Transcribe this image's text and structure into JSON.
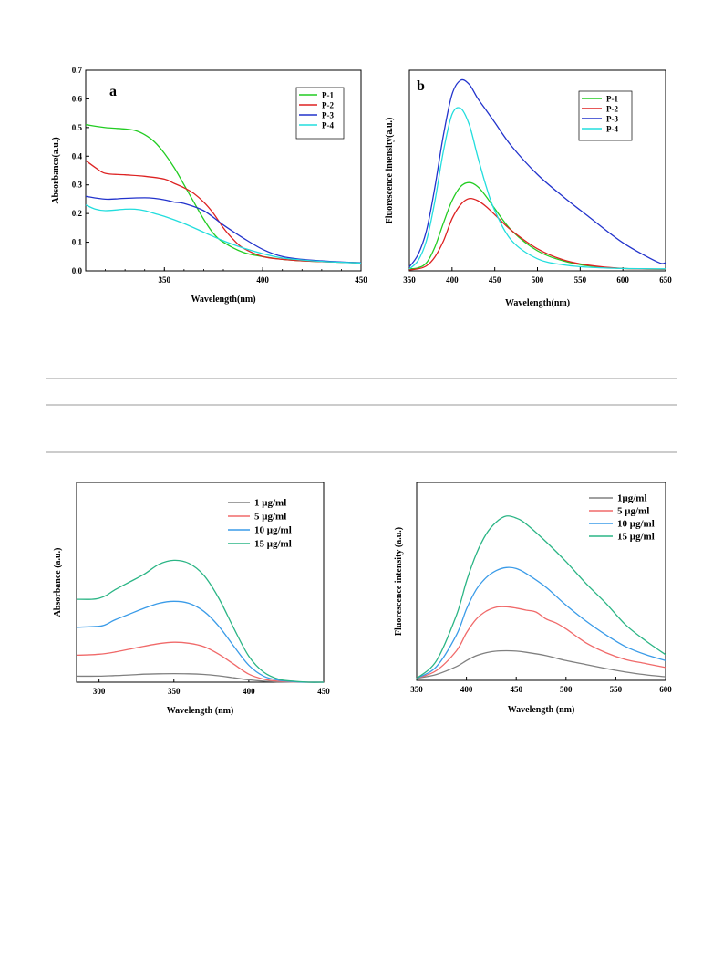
{
  "colors": {
    "green": "#22cc22",
    "red": "#dd2222",
    "blue": "#2233cc",
    "cyan": "#22dddd",
    "gray": "#808080",
    "salmon": "#f06a6a",
    "lightblue": "#3a9be8",
    "teal": "#2bb585",
    "rule": "#999999"
  },
  "chart_data": [
    {
      "id": "chart-a",
      "type": "line",
      "panel_label": "a",
      "xlabel": "Wavelength(nm)",
      "ylabel": "Absorbance(a.u.)",
      "xlim": [
        310,
        450
      ],
      "ylim": [
        0.0,
        0.7
      ],
      "xticks": [
        350,
        400,
        450
      ],
      "yticks": [
        0.0,
        0.1,
        0.2,
        0.3,
        0.4,
        0.5,
        0.6,
        0.7
      ],
      "ytick_labels": [
        "0.0",
        "0.1",
        "0.2",
        "0.3",
        "0.4",
        "0.5",
        "0.6",
        "0.7"
      ],
      "legend_position": "top-right",
      "series": [
        {
          "name": "P-1",
          "color": "green",
          "x": [
            310,
            320,
            330,
            335,
            340,
            345,
            350,
            355,
            360,
            365,
            370,
            375,
            380,
            390,
            400,
            410,
            420,
            430,
            440,
            450
          ],
          "y": [
            0.51,
            0.5,
            0.495,
            0.49,
            0.475,
            0.45,
            0.41,
            0.36,
            0.3,
            0.24,
            0.18,
            0.13,
            0.1,
            0.065,
            0.05,
            0.04,
            0.035,
            0.032,
            0.03,
            0.028
          ]
        },
        {
          "name": "P-2",
          "color": "red",
          "x": [
            310,
            315,
            320,
            330,
            340,
            350,
            355,
            360,
            365,
            370,
            375,
            380,
            385,
            390,
            400,
            410,
            420,
            430,
            440,
            450
          ],
          "y": [
            0.385,
            0.36,
            0.34,
            0.335,
            0.33,
            0.32,
            0.305,
            0.29,
            0.27,
            0.24,
            0.2,
            0.15,
            0.11,
            0.08,
            0.05,
            0.04,
            0.035,
            0.032,
            0.03,
            0.027
          ]
        },
        {
          "name": "P-3",
          "color": "blue",
          "x": [
            310,
            320,
            330,
            340,
            345,
            350,
            355,
            360,
            370,
            380,
            390,
            400,
            410,
            420,
            430,
            440,
            450
          ],
          "y": [
            0.26,
            0.25,
            0.253,
            0.255,
            0.253,
            0.248,
            0.24,
            0.235,
            0.21,
            0.16,
            0.115,
            0.075,
            0.05,
            0.04,
            0.035,
            0.031,
            0.028
          ]
        },
        {
          "name": "P-4",
          "color": "cyan",
          "x": [
            310,
            315,
            320,
            330,
            335,
            340,
            345,
            350,
            360,
            370,
            380,
            390,
            400,
            410,
            420,
            430,
            440,
            450
          ],
          "y": [
            0.23,
            0.215,
            0.21,
            0.215,
            0.215,
            0.21,
            0.2,
            0.19,
            0.165,
            0.135,
            0.105,
            0.08,
            0.06,
            0.045,
            0.038,
            0.033,
            0.03,
            0.027
          ]
        }
      ]
    },
    {
      "id": "chart-b",
      "type": "line",
      "panel_label": "b",
      "xlabel": "Wavelength(nm)",
      "ylabel": "Fluorescence intensity(a.u.)",
      "xlim": [
        350,
        650
      ],
      "ylim": [
        0,
        1
      ],
      "xticks": [
        350,
        400,
        450,
        500,
        550,
        600,
        650
      ],
      "legend_position": "top-right",
      "series": [
        {
          "name": "P-1",
          "color": "green",
          "x": [
            350,
            360,
            370,
            380,
            390,
            400,
            410,
            420,
            430,
            440,
            450,
            470,
            500,
            530,
            560,
            600,
            650
          ],
          "y": [
            0.01,
            0.015,
            0.04,
            0.12,
            0.24,
            0.35,
            0.42,
            0.44,
            0.42,
            0.37,
            0.31,
            0.2,
            0.1,
            0.05,
            0.025,
            0.012,
            0.008
          ]
        },
        {
          "name": "P-2",
          "color": "red",
          "x": [
            350,
            360,
            370,
            380,
            390,
            400,
            410,
            420,
            430,
            440,
            450,
            470,
            500,
            530,
            560,
            600,
            650
          ],
          "y": [
            0.005,
            0.01,
            0.025,
            0.07,
            0.15,
            0.26,
            0.33,
            0.36,
            0.35,
            0.32,
            0.28,
            0.2,
            0.11,
            0.055,
            0.028,
            0.012,
            0.008
          ]
        },
        {
          "name": "P-3",
          "color": "blue",
          "x": [
            350,
            360,
            370,
            380,
            390,
            400,
            410,
            420,
            430,
            440,
            450,
            470,
            500,
            530,
            560,
            600,
            640,
            650
          ],
          "y": [
            0.02,
            0.08,
            0.2,
            0.42,
            0.68,
            0.88,
            0.95,
            0.93,
            0.86,
            0.8,
            0.74,
            0.62,
            0.48,
            0.37,
            0.27,
            0.14,
            0.045,
            0.04
          ]
        },
        {
          "name": "P-4",
          "color": "cyan",
          "x": [
            350,
            360,
            370,
            380,
            390,
            400,
            410,
            420,
            430,
            440,
            450,
            470,
            500,
            530,
            560,
            600,
            650
          ],
          "y": [
            0.01,
            0.05,
            0.15,
            0.35,
            0.6,
            0.78,
            0.81,
            0.73,
            0.57,
            0.42,
            0.3,
            0.15,
            0.06,
            0.03,
            0.018,
            0.012,
            0.01
          ]
        }
      ]
    },
    {
      "id": "chart-c",
      "type": "line",
      "xlabel": "Wavelength (nm)",
      "ylabel": "Absorbance (a.u.)",
      "xlim": [
        285,
        450
      ],
      "ylim": [
        0,
        1
      ],
      "xticks": [
        300,
        350,
        400,
        450
      ],
      "legend_position": "top-right",
      "series": [
        {
          "name": "1  μg/ml",
          "color": "gray",
          "x": [
            285,
            300,
            310,
            320,
            330,
            340,
            350,
            360,
            370,
            380,
            390,
            400,
            410,
            420,
            430,
            440,
            450
          ],
          "y": [
            0.03,
            0.03,
            0.033,
            0.036,
            0.04,
            0.042,
            0.043,
            0.042,
            0.039,
            0.032,
            0.022,
            0.012,
            0.005,
            0.002,
            0.001,
            0.0,
            0.0
          ]
        },
        {
          "name": "5  μg/ml",
          "color": "salmon",
          "x": [
            285,
            300,
            310,
            320,
            330,
            340,
            350,
            360,
            370,
            380,
            390,
            400,
            410,
            420,
            430,
            440,
            450
          ],
          "y": [
            0.135,
            0.14,
            0.15,
            0.165,
            0.18,
            0.193,
            0.2,
            0.195,
            0.178,
            0.14,
            0.09,
            0.04,
            0.015,
            0.005,
            0.002,
            0.0,
            0.0
          ]
        },
        {
          "name": "10  μg/ml",
          "color": "lightblue",
          "x": [
            285,
            300,
            305,
            310,
            320,
            330,
            340,
            350,
            360,
            370,
            380,
            390,
            400,
            410,
            420,
            430,
            440,
            450
          ],
          "y": [
            0.275,
            0.28,
            0.29,
            0.31,
            0.34,
            0.37,
            0.395,
            0.405,
            0.395,
            0.355,
            0.28,
            0.18,
            0.085,
            0.03,
            0.01,
            0.003,
            0.0,
            0.0
          ]
        },
        {
          "name": "15  μg/ml",
          "color": "teal",
          "x": [
            285,
            295,
            300,
            305,
            310,
            320,
            330,
            340,
            350,
            360,
            370,
            380,
            390,
            400,
            410,
            420,
            430,
            440,
            450
          ],
          "y": [
            0.415,
            0.415,
            0.42,
            0.435,
            0.46,
            0.5,
            0.54,
            0.59,
            0.61,
            0.595,
            0.535,
            0.42,
            0.27,
            0.13,
            0.05,
            0.015,
            0.005,
            0.0,
            0.0
          ]
        }
      ]
    },
    {
      "id": "chart-d",
      "type": "line",
      "xlabel": "Wavelength (nm)",
      "ylabel": "Fluorescence intensity (a.u.)",
      "xlim": [
        350,
        600
      ],
      "ylim": [
        0,
        1
      ],
      "xticks": [
        350,
        400,
        450,
        500,
        550,
        600
      ],
      "legend_position": "top-right",
      "series": [
        {
          "name": "1μg/ml",
          "color": "gray",
          "x": [
            350,
            370,
            390,
            400,
            410,
            420,
            430,
            440,
            450,
            460,
            480,
            500,
            520,
            540,
            560,
            580,
            600
          ],
          "y": [
            0.01,
            0.03,
            0.07,
            0.1,
            0.125,
            0.14,
            0.148,
            0.15,
            0.148,
            0.142,
            0.125,
            0.1,
            0.08,
            0.06,
            0.042,
            0.028,
            0.018
          ]
        },
        {
          "name": "5 μg/ml",
          "color": "salmon",
          "x": [
            350,
            370,
            390,
            400,
            410,
            420,
            430,
            440,
            450,
            460,
            470,
            480,
            490,
            500,
            520,
            540,
            560,
            580,
            600
          ],
          "y": [
            0.01,
            0.05,
            0.15,
            0.24,
            0.31,
            0.35,
            0.37,
            0.372,
            0.365,
            0.355,
            0.345,
            0.31,
            0.29,
            0.26,
            0.19,
            0.14,
            0.105,
            0.085,
            0.065
          ]
        },
        {
          "name": "10 μg/ml",
          "color": "lightblue",
          "x": [
            350,
            370,
            390,
            400,
            410,
            420,
            430,
            440,
            450,
            460,
            480,
            500,
            520,
            540,
            560,
            580,
            600
          ],
          "y": [
            0.01,
            0.07,
            0.23,
            0.36,
            0.46,
            0.52,
            0.555,
            0.57,
            0.565,
            0.54,
            0.47,
            0.38,
            0.3,
            0.23,
            0.17,
            0.13,
            0.1
          ]
        },
        {
          "name": "15 μg/ml",
          "color": "teal",
          "x": [
            350,
            370,
            390,
            400,
            410,
            420,
            430,
            440,
            450,
            460,
            480,
            500,
            520,
            540,
            560,
            580,
            600
          ],
          "y": [
            0.01,
            0.1,
            0.33,
            0.5,
            0.64,
            0.74,
            0.8,
            0.83,
            0.82,
            0.79,
            0.7,
            0.6,
            0.49,
            0.39,
            0.28,
            0.2,
            0.13
          ]
        }
      ]
    }
  ]
}
